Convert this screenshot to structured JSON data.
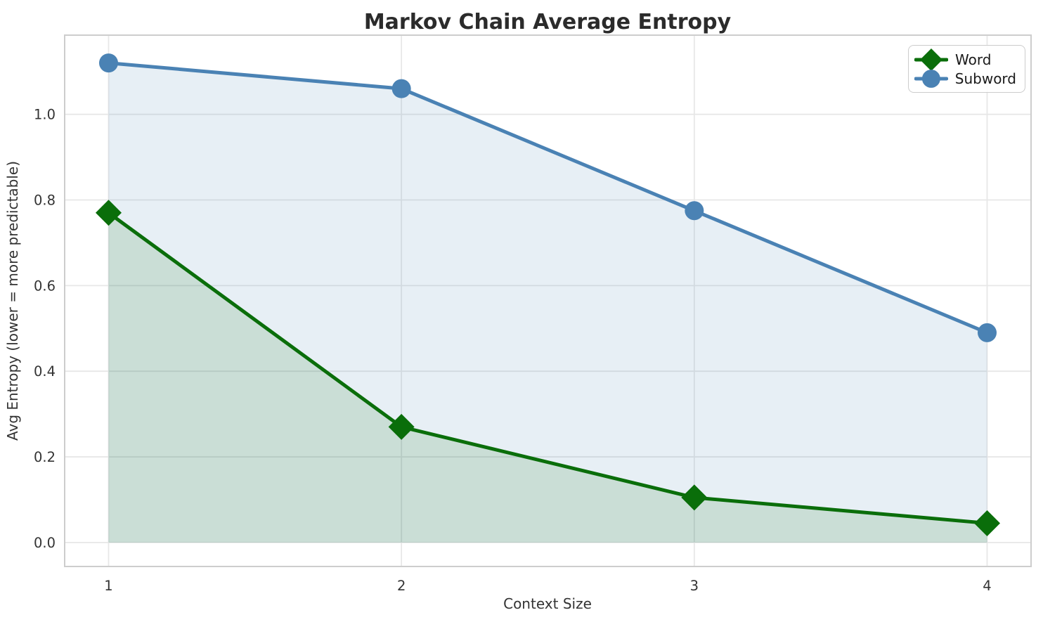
{
  "chart_data": {
    "type": "line",
    "title": "Markov Chain Average Entropy",
    "xlabel": "Context Size",
    "ylabel": "Avg Entropy (lower = more predictable)",
    "x": [
      1,
      2,
      3,
      4
    ],
    "series": [
      {
        "name": "Word",
        "values": [
          0.77,
          0.27,
          0.105,
          0.045
        ],
        "color": "#0a6e0a",
        "fill": "rgba(10,110,10,0.13)",
        "marker": "diamond"
      },
      {
        "name": "Subword",
        "values": [
          1.12,
          1.06,
          0.775,
          0.49
        ],
        "color": "#4a82b4",
        "fill": "rgba(70,130,180,0.13)",
        "marker": "circle"
      }
    ],
    "xticks": [
      "1",
      "2",
      "3",
      "4"
    ],
    "yticks": [
      "0.0",
      "0.2",
      "0.4",
      "0.6",
      "0.8",
      "1.0"
    ],
    "ytick_values": [
      0.0,
      0.2,
      0.4,
      0.6,
      0.8,
      1.0
    ],
    "xtick_values": [
      1,
      2,
      3,
      4
    ],
    "xlim": [
      0.85,
      4.15
    ],
    "ylim": [
      -0.056,
      1.185
    ],
    "grid": true,
    "area_baseline": 0,
    "legend_position": "upper right"
  },
  "colors": {
    "grid": "#e7e7e7",
    "spine": "#cdcdcd",
    "tick_text": "#333333",
    "title_text": "#2b2b2b"
  }
}
